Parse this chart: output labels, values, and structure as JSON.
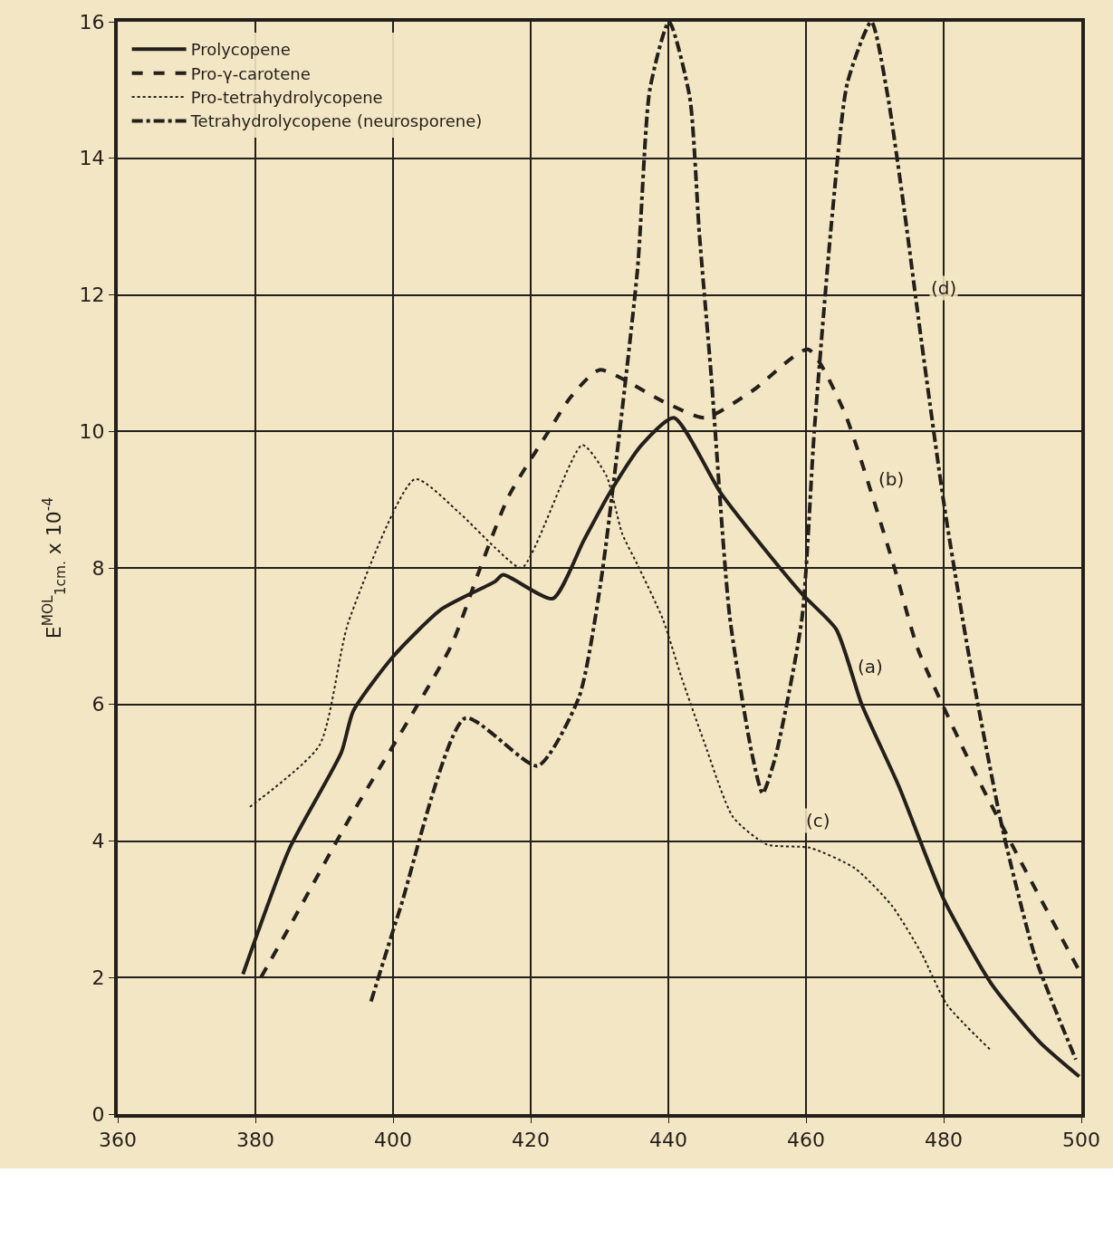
{
  "chart_data": {
    "type": "line",
    "ylabel": "E$^{MOL}$$_{1cm.}$ x 10$^{-4}$",
    "xlim": [
      360,
      500
    ],
    "xticks": [
      360,
      380,
      400,
      420,
      440,
      460,
      480,
      500
    ],
    "ylim": [
      0,
      16
    ],
    "yticks": [
      0,
      2,
      4,
      6,
      8,
      10,
      12,
      14,
      16
    ],
    "grid": true,
    "legend": "top left",
    "marker": "none",
    "series": [
      {
        "name": "Prolycopene",
        "color": "#231f1a",
        "line_style": "solid",
        "x": [
          378.2,
          385,
          392.5,
          394.2,
          400,
          407.1,
          414.8,
          416,
          423.2,
          427.7,
          431.5,
          436.1,
          440.8,
          447.6,
          454.6,
          459.6,
          464.4,
          468.1,
          473.5,
          480,
          487,
          494,
          499.7
        ],
        "values": [
          2.05,
          3.9,
          5.3,
          5.9,
          6.7,
          7.4,
          7.8,
          7.9,
          7.55,
          8.4,
          9.1,
          9.8,
          10.2,
          9.1,
          8.2,
          7.6,
          7.1,
          6.0,
          4.8,
          3.15,
          1.9,
          1.05,
          0.55
        ]
      },
      {
        "name": "Pro-γ-carotene",
        "color": "#231f1a",
        "line_style": "dashed",
        "x": [
          380.8,
          385,
          393.5,
          408.4,
          412.3,
          416.8,
          422.6,
          425.8,
          430,
          439,
          445.3,
          452.3,
          460.3,
          465.5,
          469.5,
          473,
          476.3,
          484.3,
          491.2,
          499.7
        ],
        "values": [
          2.0,
          2.75,
          4.3,
          6.85,
          7.9,
          9.05,
          10.0,
          10.5,
          10.9,
          10.45,
          10.2,
          10.6,
          11.2,
          10.3,
          9.1,
          7.95,
          6.8,
          5.05,
          3.7,
          2.1
        ]
      },
      {
        "name": "Pro-tetrahydrolycopene",
        "color": "#231f1a",
        "line_style": "dotted",
        "x": [
          379.2,
          389.3,
          393.5,
          403.2,
          409.7,
          414.8,
          418.7,
          427.5,
          431,
          433.3,
          435.5,
          439.2,
          441.9,
          445.2,
          449.4,
          454.3,
          460.6,
          467.1,
          472.5,
          476.8,
          480.5,
          486.7
        ],
        "values": [
          4.5,
          5.4,
          7.2,
          9.3,
          8.8,
          8.3,
          8.0,
          9.8,
          9.35,
          8.5,
          8.05,
          7.25,
          6.4,
          5.45,
          4.35,
          3.95,
          3.9,
          3.6,
          3.05,
          2.35,
          1.6,
          0.95
        ]
      },
      {
        "name": "Tetrahydrolycopene (neurosporene)",
        "color": "#231f1a",
        "line_style": "dashdot",
        "x": [
          396.8,
          401,
          410.5,
          421,
          427,
          430.2,
          435.5,
          437.3,
          440.1,
          443.1,
          444.5,
          446.2,
          448.9,
          452.1,
          453.7,
          455.6,
          459.4,
          461.2,
          463.7,
          466,
          469.5,
          471.9,
          474.2,
          476.8,
          480.1,
          483.7,
          488.5,
          493.3,
          499.2
        ],
        "values": [
          1.65,
          3.0,
          5.8,
          5.1,
          6.1,
          7.8,
          12.35,
          15.0,
          16.0,
          14.9,
          12.9,
          10.85,
          7.3,
          5.3,
          4.7,
          5.25,
          7.25,
          10.0,
          13.05,
          15.1,
          16.0,
          14.9,
          13.3,
          11.3,
          8.9,
          6.7,
          4.2,
          2.3,
          0.8
        ]
      }
    ],
    "annotations": [
      {
        "text": "(a)",
        "x": 469.3,
        "y": 6.55
      },
      {
        "text": "(b)",
        "x": 472.4,
        "y": 9.3
      },
      {
        "text": "(c)",
        "x": 461.8,
        "y": 4.3
      },
      {
        "text": "(d)",
        "x": 480,
        "y": 12.1
      }
    ]
  }
}
